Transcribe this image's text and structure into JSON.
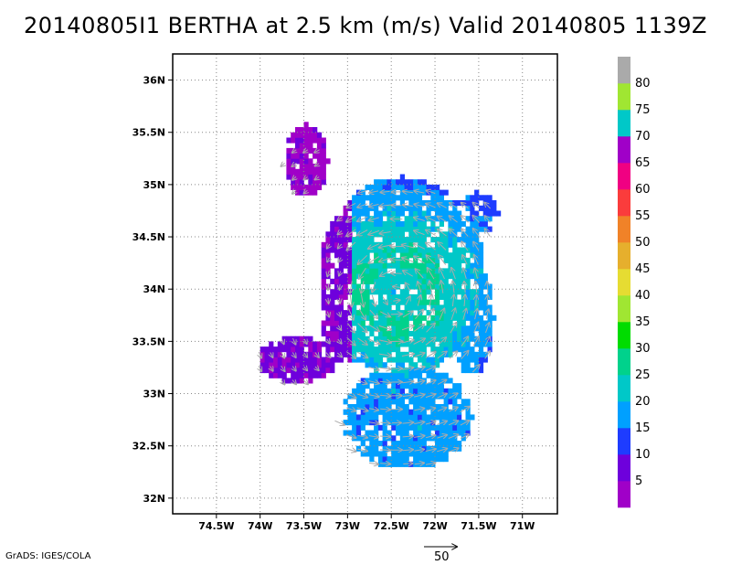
{
  "title": "20140805I1  BERTHA at 2.5 km (m/s) Valid 20140805  1139Z",
  "credit": "GrADS: IGES/COLA",
  "chart_data": {
    "type": "heatmap",
    "title": "20140805I1  BERTHA at 2.5 km (m/s) Valid 20140805  1139Z",
    "x_axis": {
      "range": [
        -75.0,
        -70.6
      ],
      "ticks": [
        -74.5,
        -74,
        -73.5,
        -73,
        -72.5,
        -72,
        -71.5,
        -71
      ],
      "tick_labels": [
        "74.5W",
        "74W",
        "73.5W",
        "73W",
        "72.5W",
        "72W",
        "71.5W",
        "71W"
      ]
    },
    "y_axis": {
      "range": [
        31.85,
        36.25
      ],
      "ticks": [
        32,
        32.5,
        33,
        33.5,
        34,
        34.5,
        35,
        35.5,
        36
      ],
      "tick_labels": [
        "32N",
        "32.5N",
        "33N",
        "33.5N",
        "34N",
        "34.5N",
        "35N",
        "35.5N",
        "36N"
      ]
    },
    "grid": true,
    "colorbar": {
      "levels": [
        5,
        10,
        15,
        20,
        25,
        30,
        35,
        40,
        45,
        50,
        55,
        60,
        65,
        70,
        75,
        80
      ],
      "colors": [
        "#a000c8",
        "#6e00dc",
        "#1e3cff",
        "#00a0ff",
        "#00c8c8",
        "#00d28c",
        "#00dc00",
        "#a0e632",
        "#e6dc32",
        "#e6af2d",
        "#f08228",
        "#fa3c3c",
        "#f00082",
        "#a000c8",
        "#00c8c8",
        "#a0e632",
        "#aaaaaa"
      ]
    },
    "storm": "BERTHA",
    "level": "2.5 km",
    "units": "m/s",
    "valid": "20140805 1139Z",
    "vector_reference": {
      "label": "50",
      "magnitude": 50
    }
  }
}
